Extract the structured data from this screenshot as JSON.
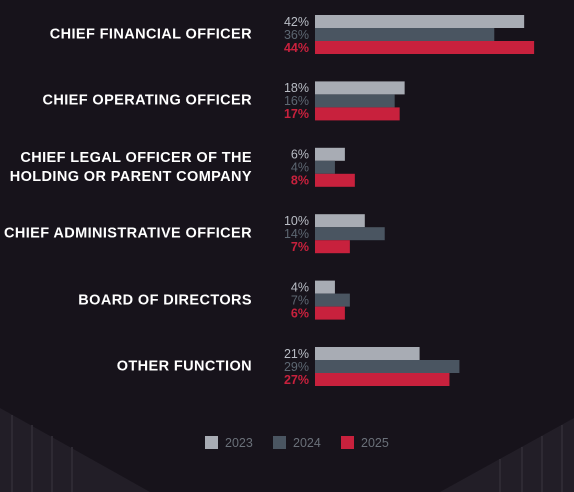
{
  "chart_data": {
    "type": "bar",
    "orientation": "horizontal",
    "categories": [
      "CHIEF FINANCIAL OFFICER",
      "CHIEF OPERATING OFFICER",
      "CHIEF LEGAL OFFICER OF THE\nHOLDING OR PARENT COMPANY",
      "CHIEF ADMINISTRATIVE OFFICER",
      "BOARD OF DIRECTORS",
      "OTHER FUNCTION"
    ],
    "series": [
      {
        "name": "2023",
        "color": "#a8acb4",
        "values": [
          42,
          18,
          6,
          10,
          4,
          21
        ],
        "value_labels": [
          "42%",
          "18%",
          "6%",
          "10%",
          "4%",
          "21%"
        ]
      },
      {
        "name": "2024",
        "color": "#4a5561",
        "values": [
          36,
          16,
          4,
          14,
          7,
          29
        ],
        "value_labels": [
          "36%",
          "16%",
          "4%",
          "14%",
          "7%",
          "29%"
        ]
      },
      {
        "name": "2025",
        "color": "#c8213d",
        "values": [
          44,
          17,
          8,
          7,
          6,
          27
        ],
        "value_labels": [
          "44%",
          "17%",
          "8%",
          "7%",
          "6%",
          "27%"
        ]
      }
    ]
  }
}
